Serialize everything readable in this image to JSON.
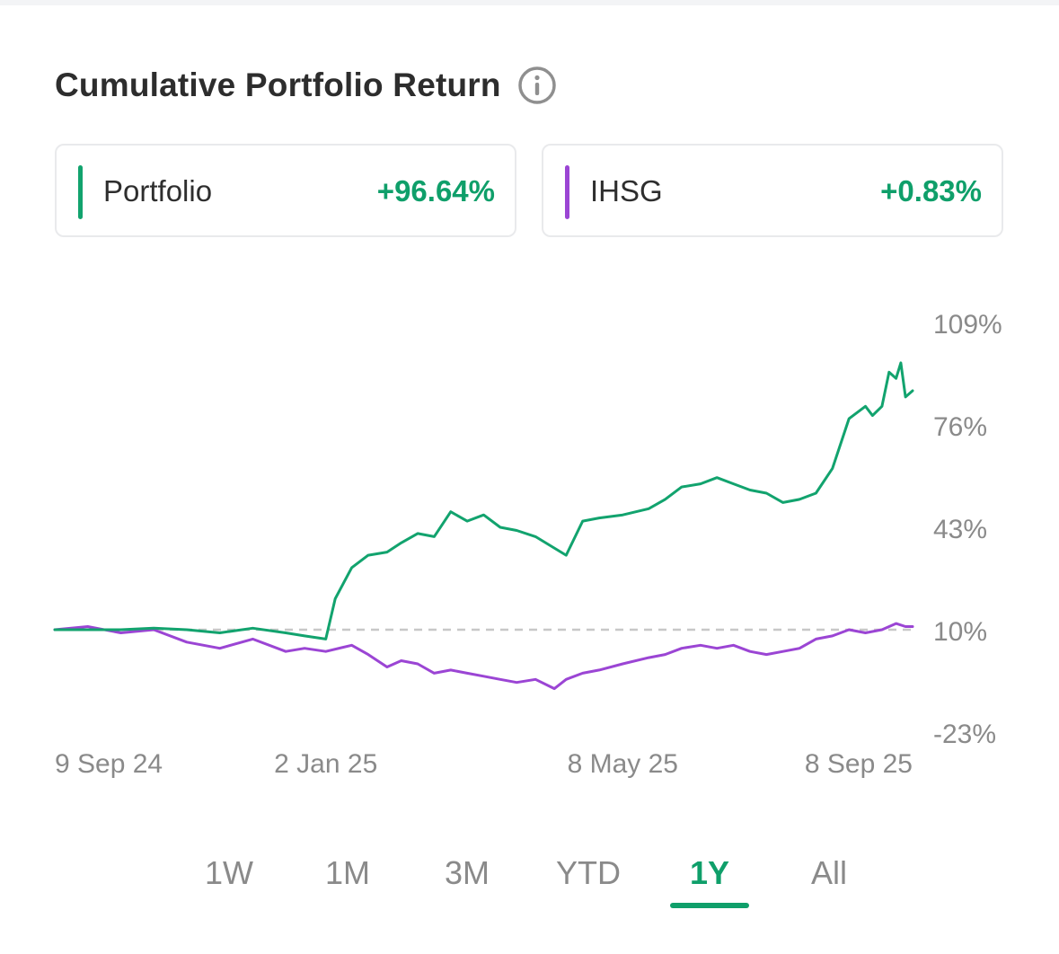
{
  "header": {
    "title": "Cumulative Portfolio Return",
    "info_icon": "info-icon"
  },
  "legend": [
    {
      "name": "Portfolio",
      "value": "+96.64%",
      "color": "#12a36e"
    },
    {
      "name": "IHSG",
      "value": "+0.83%",
      "color": "#9b45d4"
    }
  ],
  "colors": {
    "positive": "#0f9f6a",
    "axis_text": "#8a8a8a",
    "baseline": "#c8c8c8"
  },
  "chart_data": {
    "type": "line",
    "x_tick_labels": [
      "9 Sep 24",
      "2 Jan 25",
      "8 May 25",
      "8 Sep 25"
    ],
    "y_tick_labels": [
      "109%",
      "76%",
      "43%",
      "10%",
      "-23%"
    ],
    "y_ticks": [
      109,
      76,
      43,
      10,
      -23
    ],
    "ylim": [
      -23,
      109
    ],
    "baseline": 10,
    "x_range": [
      "9 Sep 24",
      "8 Sep 25"
    ],
    "series": [
      {
        "name": "Portfolio",
        "color": "#12a36e",
        "points": [
          [
            "2024-09-09",
            10
          ],
          [
            "2024-09-23",
            10
          ],
          [
            "2024-10-07",
            10
          ],
          [
            "2024-10-21",
            10.5
          ],
          [
            "2024-11-04",
            10
          ],
          [
            "2024-11-18",
            9
          ],
          [
            "2024-12-02",
            10.5
          ],
          [
            "2024-12-16",
            9
          ],
          [
            "2024-12-24",
            8
          ],
          [
            "2025-01-02",
            7
          ],
          [
            "2025-01-06",
            20
          ],
          [
            "2025-01-13",
            30
          ],
          [
            "2025-01-20",
            34
          ],
          [
            "2025-01-28",
            35
          ],
          [
            "2025-02-03",
            38
          ],
          [
            "2025-02-10",
            41
          ],
          [
            "2025-02-17",
            40
          ],
          [
            "2025-02-24",
            48
          ],
          [
            "2025-03-03",
            45
          ],
          [
            "2025-03-10",
            47
          ],
          [
            "2025-03-17",
            43
          ],
          [
            "2025-03-24",
            42
          ],
          [
            "2025-04-01",
            40
          ],
          [
            "2025-04-14",
            34
          ],
          [
            "2025-04-21",
            45
          ],
          [
            "2025-04-28",
            46
          ],
          [
            "2025-05-08",
            47
          ],
          [
            "2025-05-19",
            49
          ],
          [
            "2025-05-26",
            52
          ],
          [
            "2025-06-02",
            56
          ],
          [
            "2025-06-10",
            57
          ],
          [
            "2025-06-17",
            59
          ],
          [
            "2025-06-24",
            57
          ],
          [
            "2025-07-01",
            55
          ],
          [
            "2025-07-08",
            54
          ],
          [
            "2025-07-15",
            51
          ],
          [
            "2025-07-22",
            52
          ],
          [
            "2025-07-29",
            54
          ],
          [
            "2025-08-05",
            62
          ],
          [
            "2025-08-12",
            78
          ],
          [
            "2025-08-19",
            82
          ],
          [
            "2025-08-22",
            79
          ],
          [
            "2025-08-26",
            82
          ],
          [
            "2025-08-29",
            93
          ],
          [
            "2025-09-01",
            91
          ],
          [
            "2025-09-03",
            96
          ],
          [
            "2025-09-05",
            85
          ],
          [
            "2025-09-08",
            87
          ]
        ]
      },
      {
        "name": "IHSG",
        "color": "#9b45d4",
        "points": [
          [
            "2024-09-09",
            10
          ],
          [
            "2024-09-23",
            11
          ],
          [
            "2024-10-07",
            9
          ],
          [
            "2024-10-21",
            10
          ],
          [
            "2024-11-04",
            6
          ],
          [
            "2024-11-18",
            4
          ],
          [
            "2024-12-02",
            7
          ],
          [
            "2024-12-16",
            3
          ],
          [
            "2024-12-24",
            4
          ],
          [
            "2025-01-02",
            3
          ],
          [
            "2025-01-13",
            5
          ],
          [
            "2025-01-20",
            2
          ],
          [
            "2025-01-28",
            -2
          ],
          [
            "2025-02-03",
            0
          ],
          [
            "2025-02-10",
            -1
          ],
          [
            "2025-02-17",
            -4
          ],
          [
            "2025-02-24",
            -3
          ],
          [
            "2025-03-03",
            -4
          ],
          [
            "2025-03-10",
            -5
          ],
          [
            "2025-03-17",
            -6
          ],
          [
            "2025-03-24",
            -7
          ],
          [
            "2025-04-01",
            -6
          ],
          [
            "2025-04-09",
            -9
          ],
          [
            "2025-04-14",
            -6
          ],
          [
            "2025-04-21",
            -4
          ],
          [
            "2025-04-28",
            -3
          ],
          [
            "2025-05-08",
            -1
          ],
          [
            "2025-05-19",
            1
          ],
          [
            "2025-05-26",
            2
          ],
          [
            "2025-06-02",
            4
          ],
          [
            "2025-06-10",
            5
          ],
          [
            "2025-06-17",
            4
          ],
          [
            "2025-06-24",
            5
          ],
          [
            "2025-07-01",
            3
          ],
          [
            "2025-07-08",
            2
          ],
          [
            "2025-07-15",
            3
          ],
          [
            "2025-07-22",
            4
          ],
          [
            "2025-07-29",
            7
          ],
          [
            "2025-08-05",
            8
          ],
          [
            "2025-08-12",
            10
          ],
          [
            "2025-08-19",
            9
          ],
          [
            "2025-08-26",
            10
          ],
          [
            "2025-09-01",
            12
          ],
          [
            "2025-09-05",
            11
          ],
          [
            "2025-09-08",
            11
          ]
        ]
      }
    ]
  },
  "timeframes": {
    "options": [
      "1W",
      "1M",
      "3M",
      "YTD",
      "1Y",
      "All"
    ],
    "selected": "1Y"
  }
}
